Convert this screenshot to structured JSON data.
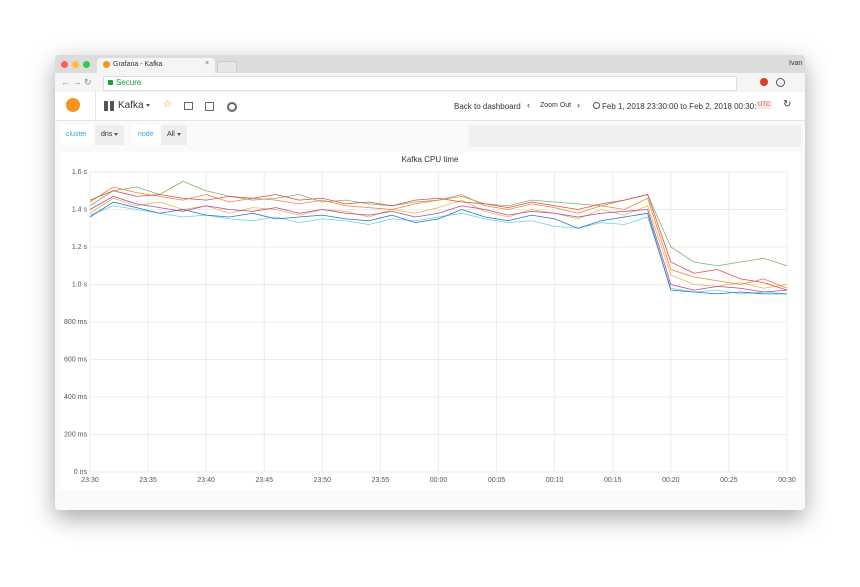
{
  "browser": {
    "tab_title": "Grafana - Kafka",
    "user": "Ivan",
    "secure": "Secure"
  },
  "nav": {
    "dashboard": "Kafka",
    "back": "Back to dashboard",
    "zoom": "Zoom Out",
    "time_range": "Feb 1, 2018 23:30:00 to Feb 2, 2018 00:30:00",
    "tz": "UTC"
  },
  "variables": [
    {
      "label": "cluster",
      "value": "dns"
    },
    {
      "label": "node",
      "value": "All"
    }
  ],
  "chart_data": {
    "type": "line",
    "title": "Kafka CPU time",
    "grid": true,
    "x": [
      0,
      2,
      4,
      6,
      8,
      10,
      12,
      14,
      16,
      18,
      20,
      22,
      24,
      26,
      28,
      30,
      32,
      34,
      36,
      38,
      40,
      42,
      44,
      46,
      48,
      50,
      52,
      54,
      56,
      58,
      60
    ],
    "xlim": [
      0,
      60
    ],
    "xticks": [
      {
        "value": 0,
        "label": "23:30"
      },
      {
        "value": 5,
        "label": "23:35"
      },
      {
        "value": 10,
        "label": "23:40"
      },
      {
        "value": 15,
        "label": "23:45"
      },
      {
        "value": 20,
        "label": "23:50"
      },
      {
        "value": 25,
        "label": "23:55"
      },
      {
        "value": 30,
        "label": "00:00"
      },
      {
        "value": 35,
        "label": "00:05"
      },
      {
        "value": 40,
        "label": "00:10"
      },
      {
        "value": 45,
        "label": "00:15"
      },
      {
        "value": 50,
        "label": "00:20"
      },
      {
        "value": 55,
        "label": "00:25"
      },
      {
        "value": 60,
        "label": "00:30"
      }
    ],
    "ylim": [
      0,
      1.6
    ],
    "yticks": [
      {
        "value": 0,
        "label": "0 ns"
      },
      {
        "value": 0.2,
        "label": "200 ms"
      },
      {
        "value": 0.4,
        "label": "400 ms"
      },
      {
        "value": 0.6,
        "label": "600 ms"
      },
      {
        "value": 0.8,
        "label": "800 ms"
      },
      {
        "value": 1.0,
        "label": "1.0 s"
      },
      {
        "value": 1.2,
        "label": "1.2 s"
      },
      {
        "value": 1.4,
        "label": "1.4 s"
      },
      {
        "value": 1.6,
        "label": "1.6 s"
      }
    ],
    "series": [
      {
        "color": "#7eb26d",
        "values": [
          1.42,
          1.5,
          1.52,
          1.48,
          1.55,
          1.5,
          1.47,
          1.45,
          1.46,
          1.48,
          1.44,
          1.45,
          1.43,
          1.42,
          1.44,
          1.45,
          1.47,
          1.43,
          1.42,
          1.45,
          1.44,
          1.43,
          1.42,
          1.45,
          1.48,
          1.2,
          1.12,
          1.1,
          1.12,
          1.14,
          1.1
        ]
      },
      {
        "color": "#eab839",
        "values": [
          1.38,
          1.46,
          1.42,
          1.44,
          1.4,
          1.42,
          1.38,
          1.41,
          1.4,
          1.37,
          1.4,
          1.39,
          1.36,
          1.4,
          1.38,
          1.41,
          1.45,
          1.39,
          1.36,
          1.4,
          1.38,
          1.35,
          1.4,
          1.37,
          1.42,
          1.05,
          1.0,
          0.99,
          1.01,
          0.98,
          1.0
        ]
      },
      {
        "color": "#6ed0e0",
        "values": [
          1.37,
          1.42,
          1.4,
          1.38,
          1.36,
          1.37,
          1.35,
          1.34,
          1.36,
          1.33,
          1.35,
          1.34,
          1.32,
          1.35,
          1.34,
          1.36,
          1.38,
          1.35,
          1.33,
          1.34,
          1.31,
          1.3,
          1.33,
          1.32,
          1.36,
          0.98,
          0.96,
          0.97,
          0.95,
          0.96,
          0.95
        ]
      },
      {
        "color": "#ef843c",
        "values": [
          1.44,
          1.52,
          1.49,
          1.47,
          1.45,
          1.48,
          1.44,
          1.46,
          1.45,
          1.43,
          1.45,
          1.42,
          1.41,
          1.4,
          1.43,
          1.45,
          1.48,
          1.42,
          1.4,
          1.43,
          1.41,
          1.38,
          1.42,
          1.4,
          1.46,
          1.08,
          1.04,
          1.02,
          1.0,
          1.03,
          0.98
        ]
      },
      {
        "color": "#e24d42",
        "values": [
          1.45,
          1.5,
          1.47,
          1.48,
          1.46,
          1.45,
          1.47,
          1.46,
          1.48,
          1.45,
          1.46,
          1.43,
          1.44,
          1.42,
          1.45,
          1.46,
          1.44,
          1.43,
          1.41,
          1.44,
          1.42,
          1.4,
          1.43,
          1.45,
          1.48,
          1.12,
          1.06,
          1.08,
          1.03,
          1.01,
          0.97
        ]
      },
      {
        "color": "#1f78c1",
        "values": [
          1.36,
          1.44,
          1.41,
          1.38,
          1.4,
          1.37,
          1.36,
          1.38,
          1.35,
          1.36,
          1.37,
          1.35,
          1.34,
          1.37,
          1.33,
          1.35,
          1.4,
          1.36,
          1.34,
          1.37,
          1.35,
          1.3,
          1.34,
          1.36,
          1.38,
          0.97,
          0.96,
          0.95,
          0.96,
          0.95,
          0.95
        ]
      },
      {
        "color": "#ba43a9",
        "values": [
          1.4,
          1.47,
          1.43,
          1.41,
          1.39,
          1.42,
          1.4,
          1.39,
          1.41,
          1.38,
          1.4,
          1.38,
          1.37,
          1.39,
          1.36,
          1.38,
          1.42,
          1.4,
          1.37,
          1.39,
          1.38,
          1.36,
          1.38,
          1.39,
          1.4,
          1.0,
          0.97,
          0.99,
          0.98,
          0.96,
          0.97
        ]
      }
    ]
  }
}
